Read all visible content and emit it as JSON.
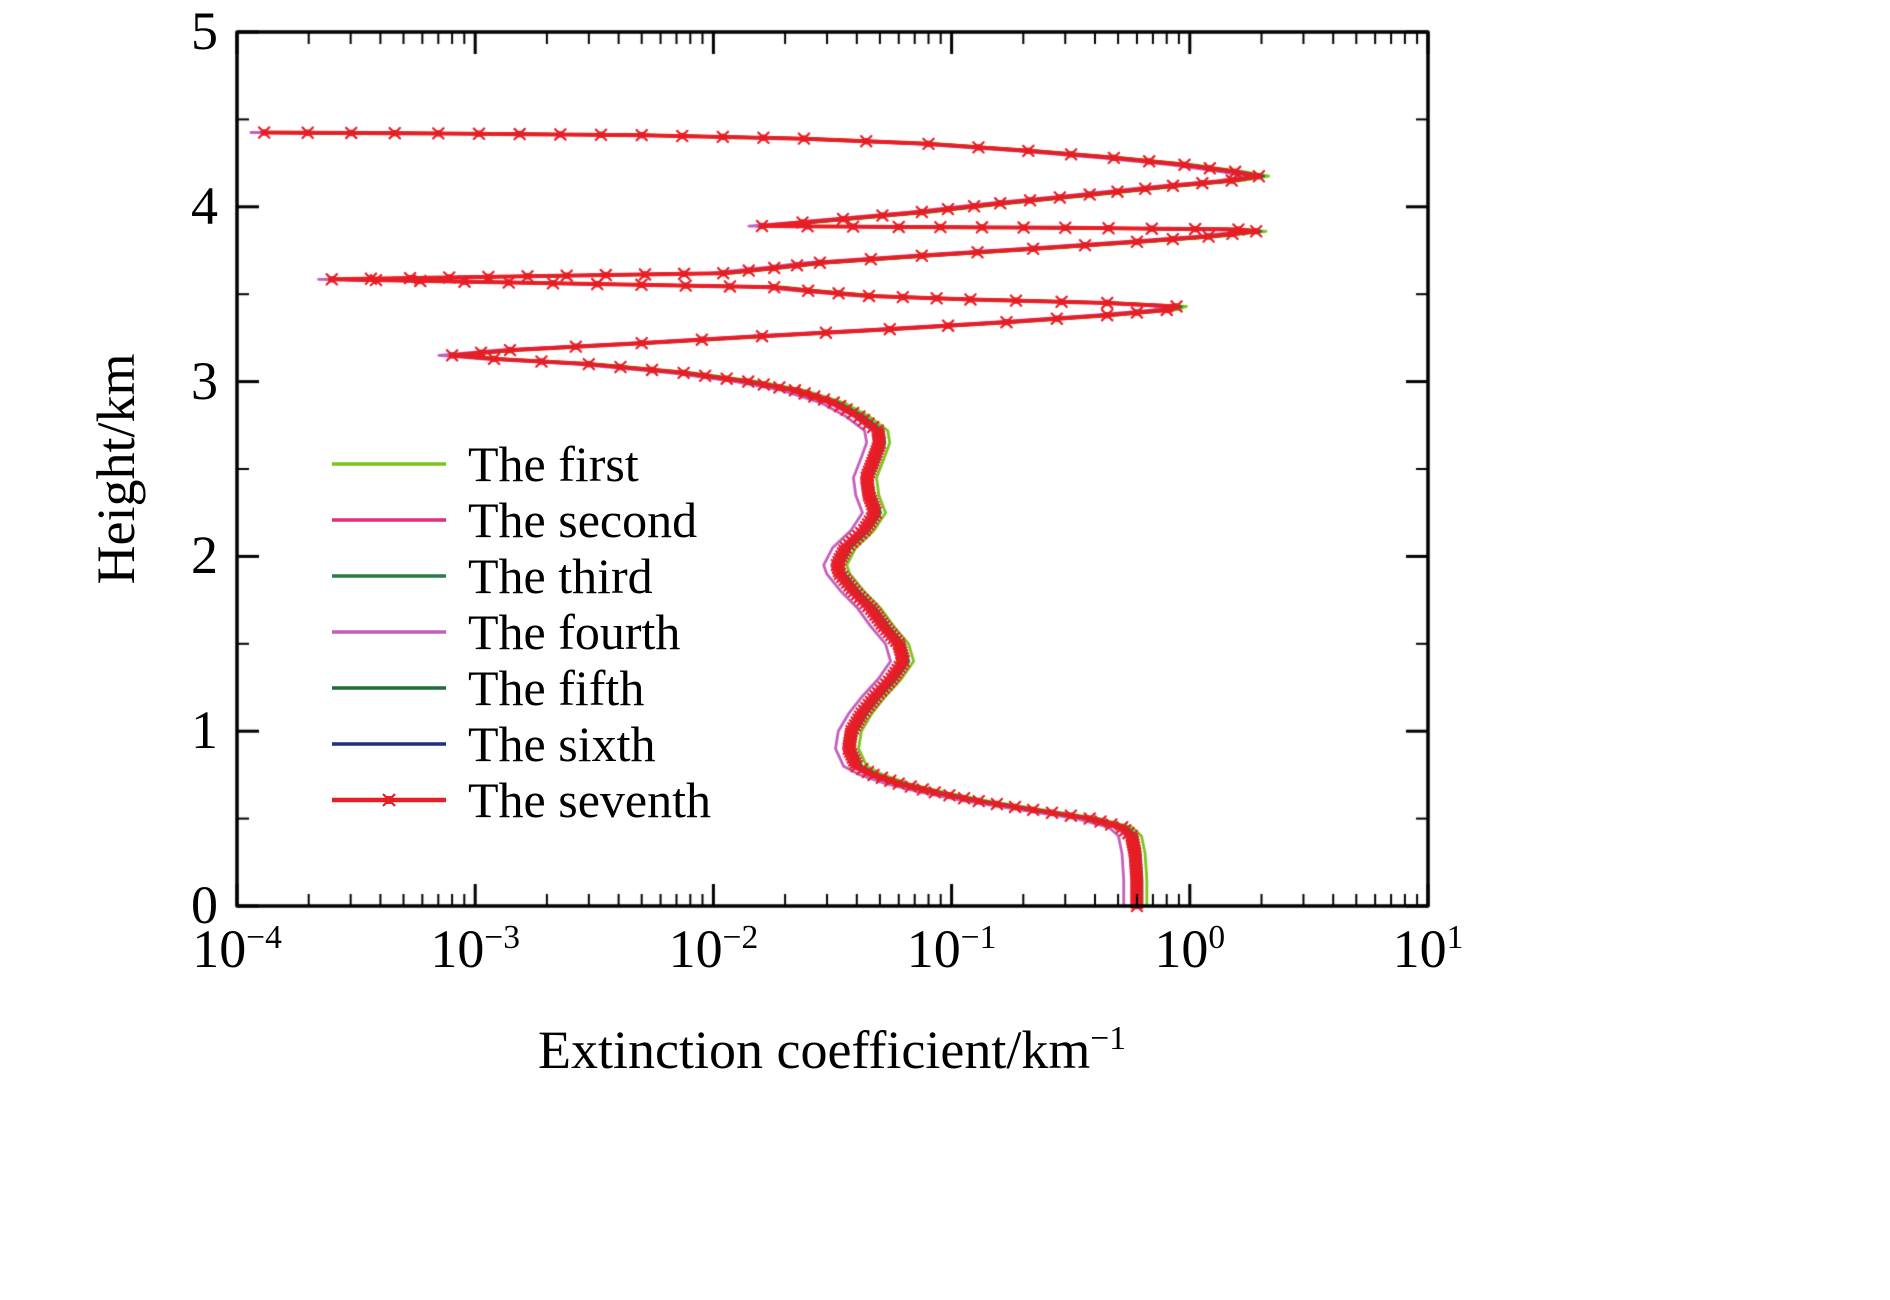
{
  "chart_data": {
    "type": "line",
    "title": "",
    "xlabel_main": "Extinction coefficient/km",
    "xlabel_sup": "−1",
    "ylabel": "Height/km",
    "x_axis": {
      "scale": "log",
      "min_exp": -4,
      "max_exp": 1,
      "tick_labels": [
        {
          "base": "10",
          "exp": "−4"
        },
        {
          "base": "10",
          "exp": "−3"
        },
        {
          "base": "10",
          "exp": "−2"
        },
        {
          "base": "10",
          "exp": "−1"
        },
        {
          "base": "10",
          "exp": "0"
        },
        {
          "base": "10",
          "exp": "1"
        }
      ]
    },
    "y_axis": {
      "min": 0,
      "max": 5,
      "tick_labels": [
        "0",
        "1",
        "2",
        "3",
        "4",
        "5"
      ],
      "minor_step": 0.5
    },
    "legend_position": "inside-center-left",
    "grid": false,
    "profile": {
      "heights_km": [
        0.0,
        0.15,
        0.3,
        0.4,
        0.45,
        0.5,
        0.55,
        0.6,
        0.65,
        0.7,
        0.75,
        0.8,
        0.9,
        1.0,
        1.1,
        1.2,
        1.3,
        1.4,
        1.5,
        1.6,
        1.7,
        1.8,
        1.9,
        1.95,
        2.05,
        2.15,
        2.25,
        2.35,
        2.45,
        2.55,
        2.65,
        2.72,
        2.8,
        2.88,
        2.95,
        3.0,
        3.05,
        3.1,
        3.13,
        3.15,
        3.18,
        3.22,
        3.26,
        3.3,
        3.34,
        3.38,
        3.41,
        3.43,
        3.45,
        3.47,
        3.49,
        3.52,
        3.54,
        3.585,
        3.62,
        3.65,
        3.68,
        3.72,
        3.76,
        3.8,
        3.83,
        3.86,
        3.87,
        3.88,
        3.885,
        3.89,
        3.93,
        3.97,
        4.02,
        4.07,
        4.12,
        4.15,
        4.175,
        4.2,
        4.24,
        4.28,
        4.32,
        4.36,
        4.39,
        4.41,
        4.42,
        4.425
      ],
      "extinction_per_km": [
        0.6,
        0.6,
        0.59,
        0.57,
        0.52,
        0.38,
        0.22,
        0.13,
        0.085,
        0.06,
        0.047,
        0.04,
        0.037,
        0.038,
        0.042,
        0.048,
        0.056,
        0.063,
        0.06,
        0.052,
        0.046,
        0.039,
        0.034,
        0.033,
        0.036,
        0.043,
        0.048,
        0.045,
        0.044,
        0.047,
        0.05,
        0.049,
        0.041,
        0.032,
        0.022,
        0.014,
        0.0075,
        0.003,
        0.0012,
        0.0008,
        0.0014,
        0.005,
        0.016,
        0.055,
        0.17,
        0.45,
        0.8,
        0.88,
        0.45,
        0.12,
        0.045,
        0.025,
        0.018,
        0.00025,
        0.011,
        0.018,
        0.028,
        0.075,
        0.22,
        0.6,
        1.2,
        1.9,
        1.6,
        0.3,
        0.06,
        0.016,
        0.035,
        0.075,
        0.16,
        0.38,
        0.85,
        1.5,
        1.95,
        1.55,
        0.95,
        0.48,
        0.21,
        0.08,
        0.024,
        0.005,
        0.0007,
        0.00013
      ]
    },
    "series": [
      {
        "name": "The first",
        "color": "#7DC51F",
        "x_factor": 1.1,
        "marker": "none"
      },
      {
        "name": "The second",
        "color": "#E82D74",
        "x_factor": 0.95,
        "marker": "none"
      },
      {
        "name": "The third",
        "color": "#2A7E43",
        "x_factor": 1.05,
        "marker": "none"
      },
      {
        "name": "The fourth",
        "color": "#C45FC0",
        "x_factor": 0.88,
        "marker": "none"
      },
      {
        "name": "The fifth",
        "color": "#1C6E36",
        "x_factor": 1.03,
        "marker": "none"
      },
      {
        "name": "The sixth",
        "color": "#1F2F7E",
        "x_factor": 0.98,
        "marker": "none"
      },
      {
        "name": "The seventh",
        "color": "#E81E25",
        "x_factor": 1.0,
        "marker": "star-square"
      }
    ]
  }
}
